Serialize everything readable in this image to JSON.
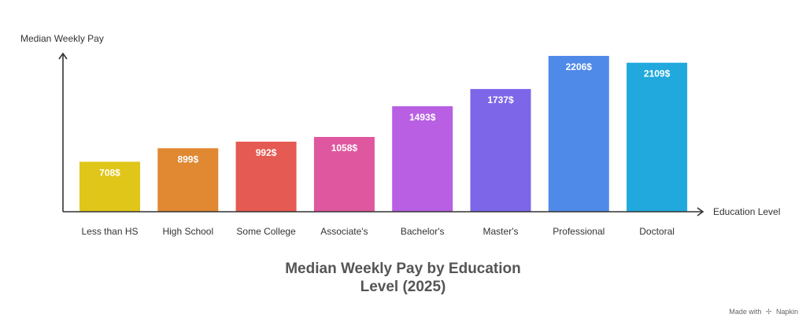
{
  "chart_data": {
    "type": "bar",
    "title_lines": [
      "Median Weekly Pay by Education",
      "Level (2025)"
    ],
    "xlabel": "Education Level",
    "ylabel": "Median Weekly Pay",
    "categories": [
      "Less than HS",
      "High School",
      "Some College",
      "Associate's",
      "Bachelor's",
      "Master's",
      "Professional",
      "Doctoral"
    ],
    "values": [
      708,
      899,
      992,
      1058,
      1493,
      1737,
      2206,
      2109
    ],
    "value_labels": [
      "708$",
      "899$",
      "992$",
      "1058$",
      "1493$",
      "1737$",
      "2206$",
      "2109$"
    ],
    "colors": [
      "#e0c619",
      "#e08832",
      "#e55a52",
      "#df589f",
      "#b85fe4",
      "#7d66e8",
      "#4f8ae8",
      "#21a9dd"
    ],
    "ylim": [
      0,
      2206
    ],
    "grid": false,
    "legend": "none"
  },
  "footer": {
    "made_with": "Made with",
    "brand": "Napkin",
    "brand_icon": "napkin-logo-icon"
  }
}
